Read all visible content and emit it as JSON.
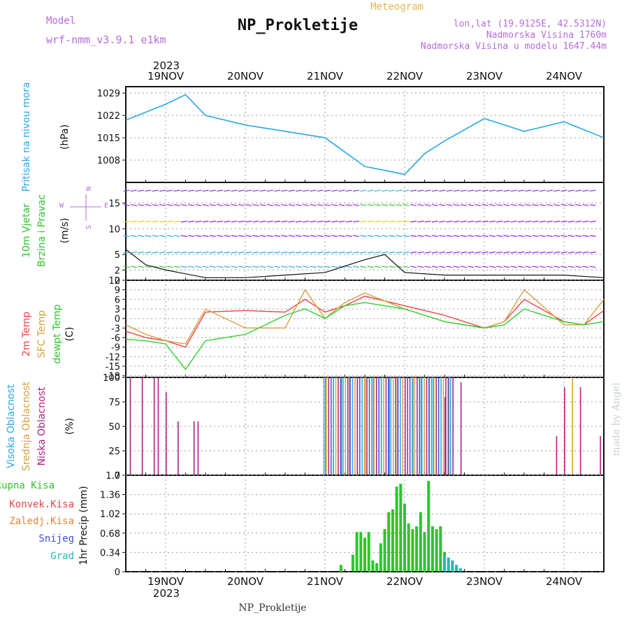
{
  "header": {
    "model_label": "Model",
    "model_name": "wrf-nmm_v3.9.1 e1km",
    "station": "NP_Prokletije",
    "meteogram_label": "Meteogram",
    "lonlat": "lon,lat (19.9125E, 42.5312N)",
    "altitude": "Nadmorska Visina 1760m",
    "model_altitude": "Nadmorska Visina u modelu 1647.44m"
  },
  "time_axis": {
    "year": "2023",
    "days": [
      "19NOV",
      "20NOV",
      "21NOV",
      "22NOV",
      "23NOV",
      "24NOV"
    ]
  },
  "footer": {
    "station": "NP_Prokletije",
    "credit": "made by Angel"
  },
  "colors": {
    "pressure": "#2aa7e6",
    "temp2m": "#e8434b",
    "sfc": "#d9a13c",
    "dewpt": "#2ed12e",
    "wind_strong": "#8a2be2",
    "high_cloud": "#29a9e0",
    "mid_cloud": "#d9a13c",
    "low_cloud": "#b0207f",
    "precip_total": "#2ec42e",
    "precip_conv": "#e8434b",
    "precip_frz": "#ef7f2f",
    "precip_snow": "#3f4fd8",
    "precip_grad": "#25b8b0"
  },
  "chart_data": [
    {
      "type": "line",
      "ylabel_main": "Pritisak na nivou mora",
      "ylabel_unit": "(hPa)",
      "ylim": [
        1001,
        1031
      ],
      "yticks": [
        "1029",
        "1022",
        "1015",
        "1008"
      ],
      "grid": true,
      "x": [
        "18.5",
        "19.0",
        "19.25",
        "19.5",
        "20.0",
        "20.5",
        "21.0",
        "21.5",
        "22.0",
        "22.25",
        "22.5",
        "23.0",
        "23.5",
        "24.0",
        "24.5"
      ],
      "values": [
        1020.5,
        1025.5,
        1028.5,
        1022,
        1019,
        1017,
        1015,
        1006,
        1003.5,
        1010,
        1014,
        1021,
        1017,
        1020,
        1015
      ]
    },
    {
      "type": "line",
      "ylabel_main": "10m Vjetar",
      "ylabel_sub": "Brzina i Pravac",
      "ylabel_unit": "(m/s)",
      "compass": {
        "north": "N",
        "west": "W",
        "east": "E",
        "south": "S"
      },
      "ylim": [
        0,
        19
      ],
      "yticks": [
        "0",
        "2",
        "5",
        "10",
        "15"
      ],
      "grid": true,
      "x": [
        "18.5",
        "18.75",
        "19.0",
        "19.5",
        "20.0",
        "20.5",
        "21.0",
        "21.5",
        "21.75",
        "22.0",
        "22.5",
        "23.0",
        "23.5",
        "24.0",
        "24.5"
      ],
      "values": [
        6,
        3,
        2,
        0.5,
        0.5,
        1,
        1.5,
        4,
        5,
        1.5,
        1,
        1,
        1,
        1,
        0.5
      ]
    },
    {
      "type": "line",
      "ylabels": [
        "2m Temp",
        "SFC Temp",
        "dewpt Temp"
      ],
      "ylabel_unit": "(C)",
      "ylim": [
        -18.5,
        12
      ],
      "yticks": [
        "12",
        "9",
        "6",
        "3",
        "0",
        "-3",
        "-6",
        "-9",
        "-12",
        "-15",
        "-18"
      ],
      "grid": true,
      "x": [
        "18.5",
        "18.75",
        "19.0",
        "19.25",
        "19.5",
        "20.0",
        "20.5",
        "20.75",
        "21.0",
        "21.25",
        "21.5",
        "22.0",
        "22.5",
        "23.0",
        "23.25",
        "23.5",
        "24.0",
        "24.25",
        "24.5"
      ],
      "series": [
        {
          "name": "2m Temp",
          "values": [
            -4,
            -6,
            -7,
            -9,
            2,
            2.5,
            2,
            6,
            2,
            4,
            7,
            4,
            1,
            -3,
            -1,
            6,
            -1,
            -2,
            2.5
          ]
        },
        {
          "name": "SFC Temp",
          "values": [
            -2,
            -5,
            -7,
            -8,
            3,
            -3,
            -3,
            9,
            0,
            5,
            8,
            3,
            -1,
            -3,
            -1,
            9,
            -2,
            -2,
            6
          ]
        },
        {
          "name": "dewpt Temp",
          "values": [
            -6.5,
            -7,
            -8,
            -16,
            -7,
            -5,
            1,
            3,
            0,
            4,
            5,
            3,
            -1,
            -3,
            -2,
            3,
            -1,
            -2,
            -1
          ]
        }
      ]
    },
    {
      "type": "bar",
      "ylabels": [
        "Visoka Oblacnost",
        "Srednja Oblacnost",
        "Niska Oblacnost"
      ],
      "ylabel_unit": "(%)",
      "ylim": [
        0,
        100
      ],
      "yticks": [
        "100",
        "75",
        "50",
        "25",
        "0"
      ],
      "grid": true,
      "series": [
        {
          "name": "Niska Oblacnost",
          "x": [
            18.55,
            18.7,
            18.85,
            18.9,
            19.0,
            19.15,
            19.35,
            19.4,
            22.3,
            22.5,
            22.6,
            22.7,
            23.9,
            24.0,
            24.2,
            24.45
          ],
          "values": [
            100,
            100,
            100,
            100,
            85,
            55,
            55,
            55,
            100,
            80,
            100,
            95,
            40,
            90,
            90,
            40
          ]
        },
        {
          "name": "Srednja Oblacnost",
          "x": [
            21.0,
            21.1,
            21.3,
            21.5,
            21.7,
            21.9,
            22.1,
            22.3,
            22.55,
            24.1
          ],
          "values": [
            100,
            100,
            100,
            100,
            100,
            100,
            100,
            100,
            100,
            100
          ]
        },
        {
          "name": "Visoka Oblacnost",
          "x": [
            21.0,
            21.2,
            21.4,
            21.6,
            21.8,
            22.0,
            22.2,
            22.35
          ],
          "values": [
            100,
            100,
            100,
            100,
            100,
            100,
            100,
            100
          ]
        }
      ]
    },
    {
      "type": "bar",
      "legend": [
        "Ukupna Kisa",
        "Konvek.Kisa",
        "Zaledj.Kisa",
        "Snijeg",
        "Grad"
      ],
      "ylabel_unit": "1hr Precip (mm)",
      "ylim": [
        0,
        1.7
      ],
      "yticks": [
        "1.7",
        "1.36",
        "1.02",
        "0.68",
        "0.34",
        "0"
      ],
      "grid": true,
      "series": [
        {
          "name": "Ukupna Kisa",
          "x": [
            21.2,
            21.35,
            21.4,
            21.45,
            21.5,
            21.55,
            21.6,
            21.65,
            21.7,
            21.75,
            21.8,
            21.85,
            21.9,
            21.95,
            22.0,
            22.05,
            22.1,
            22.15,
            22.2,
            22.25,
            22.3,
            22.35,
            22.4,
            22.45,
            22.5
          ],
          "values": [
            0.12,
            0.3,
            0.7,
            0.7,
            0.6,
            0.7,
            0.2,
            0.15,
            0.5,
            0.75,
            1.05,
            1.1,
            1.5,
            1.55,
            1.2,
            0.85,
            0.75,
            0.8,
            1.05,
            0.7,
            1.6,
            0.8,
            0.75,
            0.8,
            0.35
          ]
        },
        {
          "name": "Grad",
          "x": [
            22.5,
            22.55,
            22.6,
            22.65,
            22.7
          ],
          "values": [
            0.3,
            0.25,
            0.2,
            0.12,
            0.06
          ]
        }
      ]
    }
  ]
}
